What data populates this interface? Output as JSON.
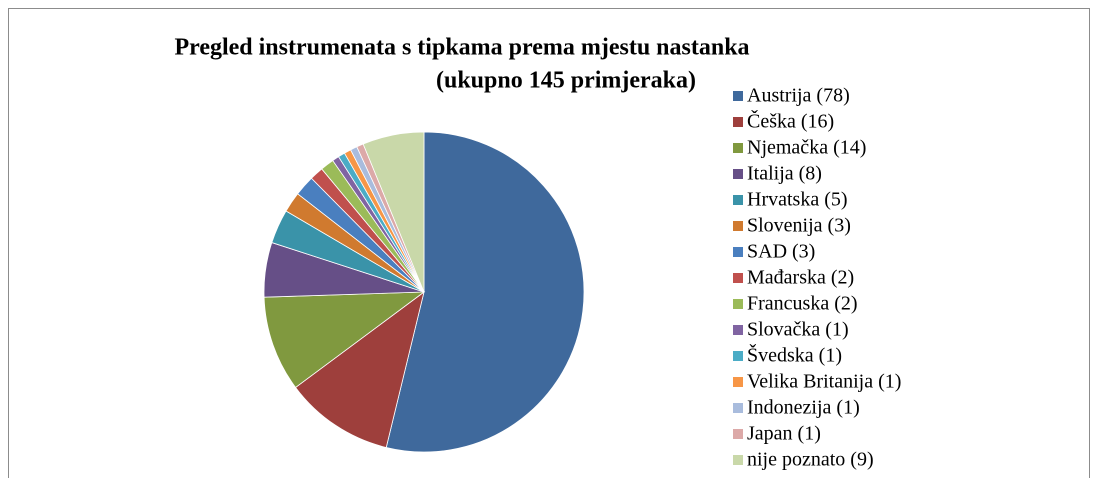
{
  "chart_data": {
    "type": "pie",
    "title": [
      "Pregled instrumenata s tipkama prema mjestu nastanka",
      "(ukupno 145 primjeraka)"
    ],
    "categories": [
      "Austrija (78)",
      "Češka (16)",
      "Njemačka (14)",
      "Italija (8)",
      "Hrvatska (5)",
      "Slovenija (3)",
      "SAD (3)",
      "Mađarska (2)",
      "Francuska (2)",
      "Slovačka (1)",
      "Švedska (1)",
      "Velika Britanija (1)",
      "Indonezija (1)",
      "Japan (1)",
      "nije poznato (9)"
    ],
    "values": [
      78,
      16,
      14,
      8,
      5,
      3,
      3,
      2,
      2,
      1,
      1,
      1,
      1,
      1,
      9
    ],
    "colors": [
      "#3f699c",
      "#9e3f3c",
      "#80993f",
      "#664f87",
      "#3a93a9",
      "#d07a2f",
      "#4a7fbf",
      "#c0504d",
      "#9bbb59",
      "#8064a2",
      "#4bacc6",
      "#f79646",
      "#a9bcdd",
      "#dca9a8",
      "#c9d8a9"
    ],
    "legend": "right"
  }
}
